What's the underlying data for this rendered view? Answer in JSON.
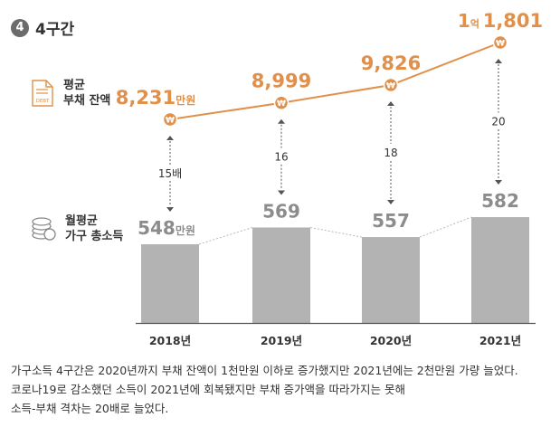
{
  "section": {
    "number": "4",
    "title": "4구간"
  },
  "legend": {
    "debt": {
      "line1": "평균",
      "line2": "부채 잔액",
      "icon": "debt-document-icon",
      "icon_text": "DEBT"
    },
    "income": {
      "line1": "월평균",
      "line2": "가구 총소득",
      "icon": "coin-stack-icon"
    }
  },
  "colors": {
    "debt_line": "#e0904a",
    "debt_value": "#e0904a",
    "bar": "#b3b3b3",
    "income_value": "#8c8c8c",
    "marker_symbol": "₩"
  },
  "chart_data": {
    "type": "bar",
    "categories": [
      "2018년",
      "2019년",
      "2020년",
      "2021년"
    ],
    "series": [
      {
        "values": [
          548,
          569,
          557,
          582
        ]
      },
      {
        "values": [
          8231,
          8999,
          9826,
          11801
        ]
      }
    ],
    "income_labels": [
      {
        "value": "548",
        "unit": "만원"
      },
      {
        "value": "569",
        "unit": ""
      },
      {
        "value": "557",
        "unit": ""
      },
      {
        "value": "582",
        "unit": ""
      }
    ],
    "debt_labels": [
      {
        "prefix": "",
        "prefix_unit": "",
        "value": "8,231",
        "unit": "만원"
      },
      {
        "prefix": "",
        "prefix_unit": "",
        "value": "8,999",
        "unit": ""
      },
      {
        "prefix": "",
        "prefix_unit": "",
        "value": "9,826",
        "unit": ""
      },
      {
        "prefix": "1",
        "prefix_unit": "억",
        "value": "1,801",
        "unit": ""
      }
    ],
    "ratio_labels": [
      "15배",
      "16",
      "18",
      "20"
    ]
  },
  "caption": {
    "lines": [
      "가구소득 4구간은 2020년까지 부채 잔액이 1천만원 이하로 증가했지만 2021년에는 2천만원 가량 늘었다.",
      "코로나19로 감소했던 소득이 2021년에 회복됐지만 부채 증가액을 따라가지는 못해",
      "소득-부채 격차는 20배로 늘었다."
    ]
  }
}
